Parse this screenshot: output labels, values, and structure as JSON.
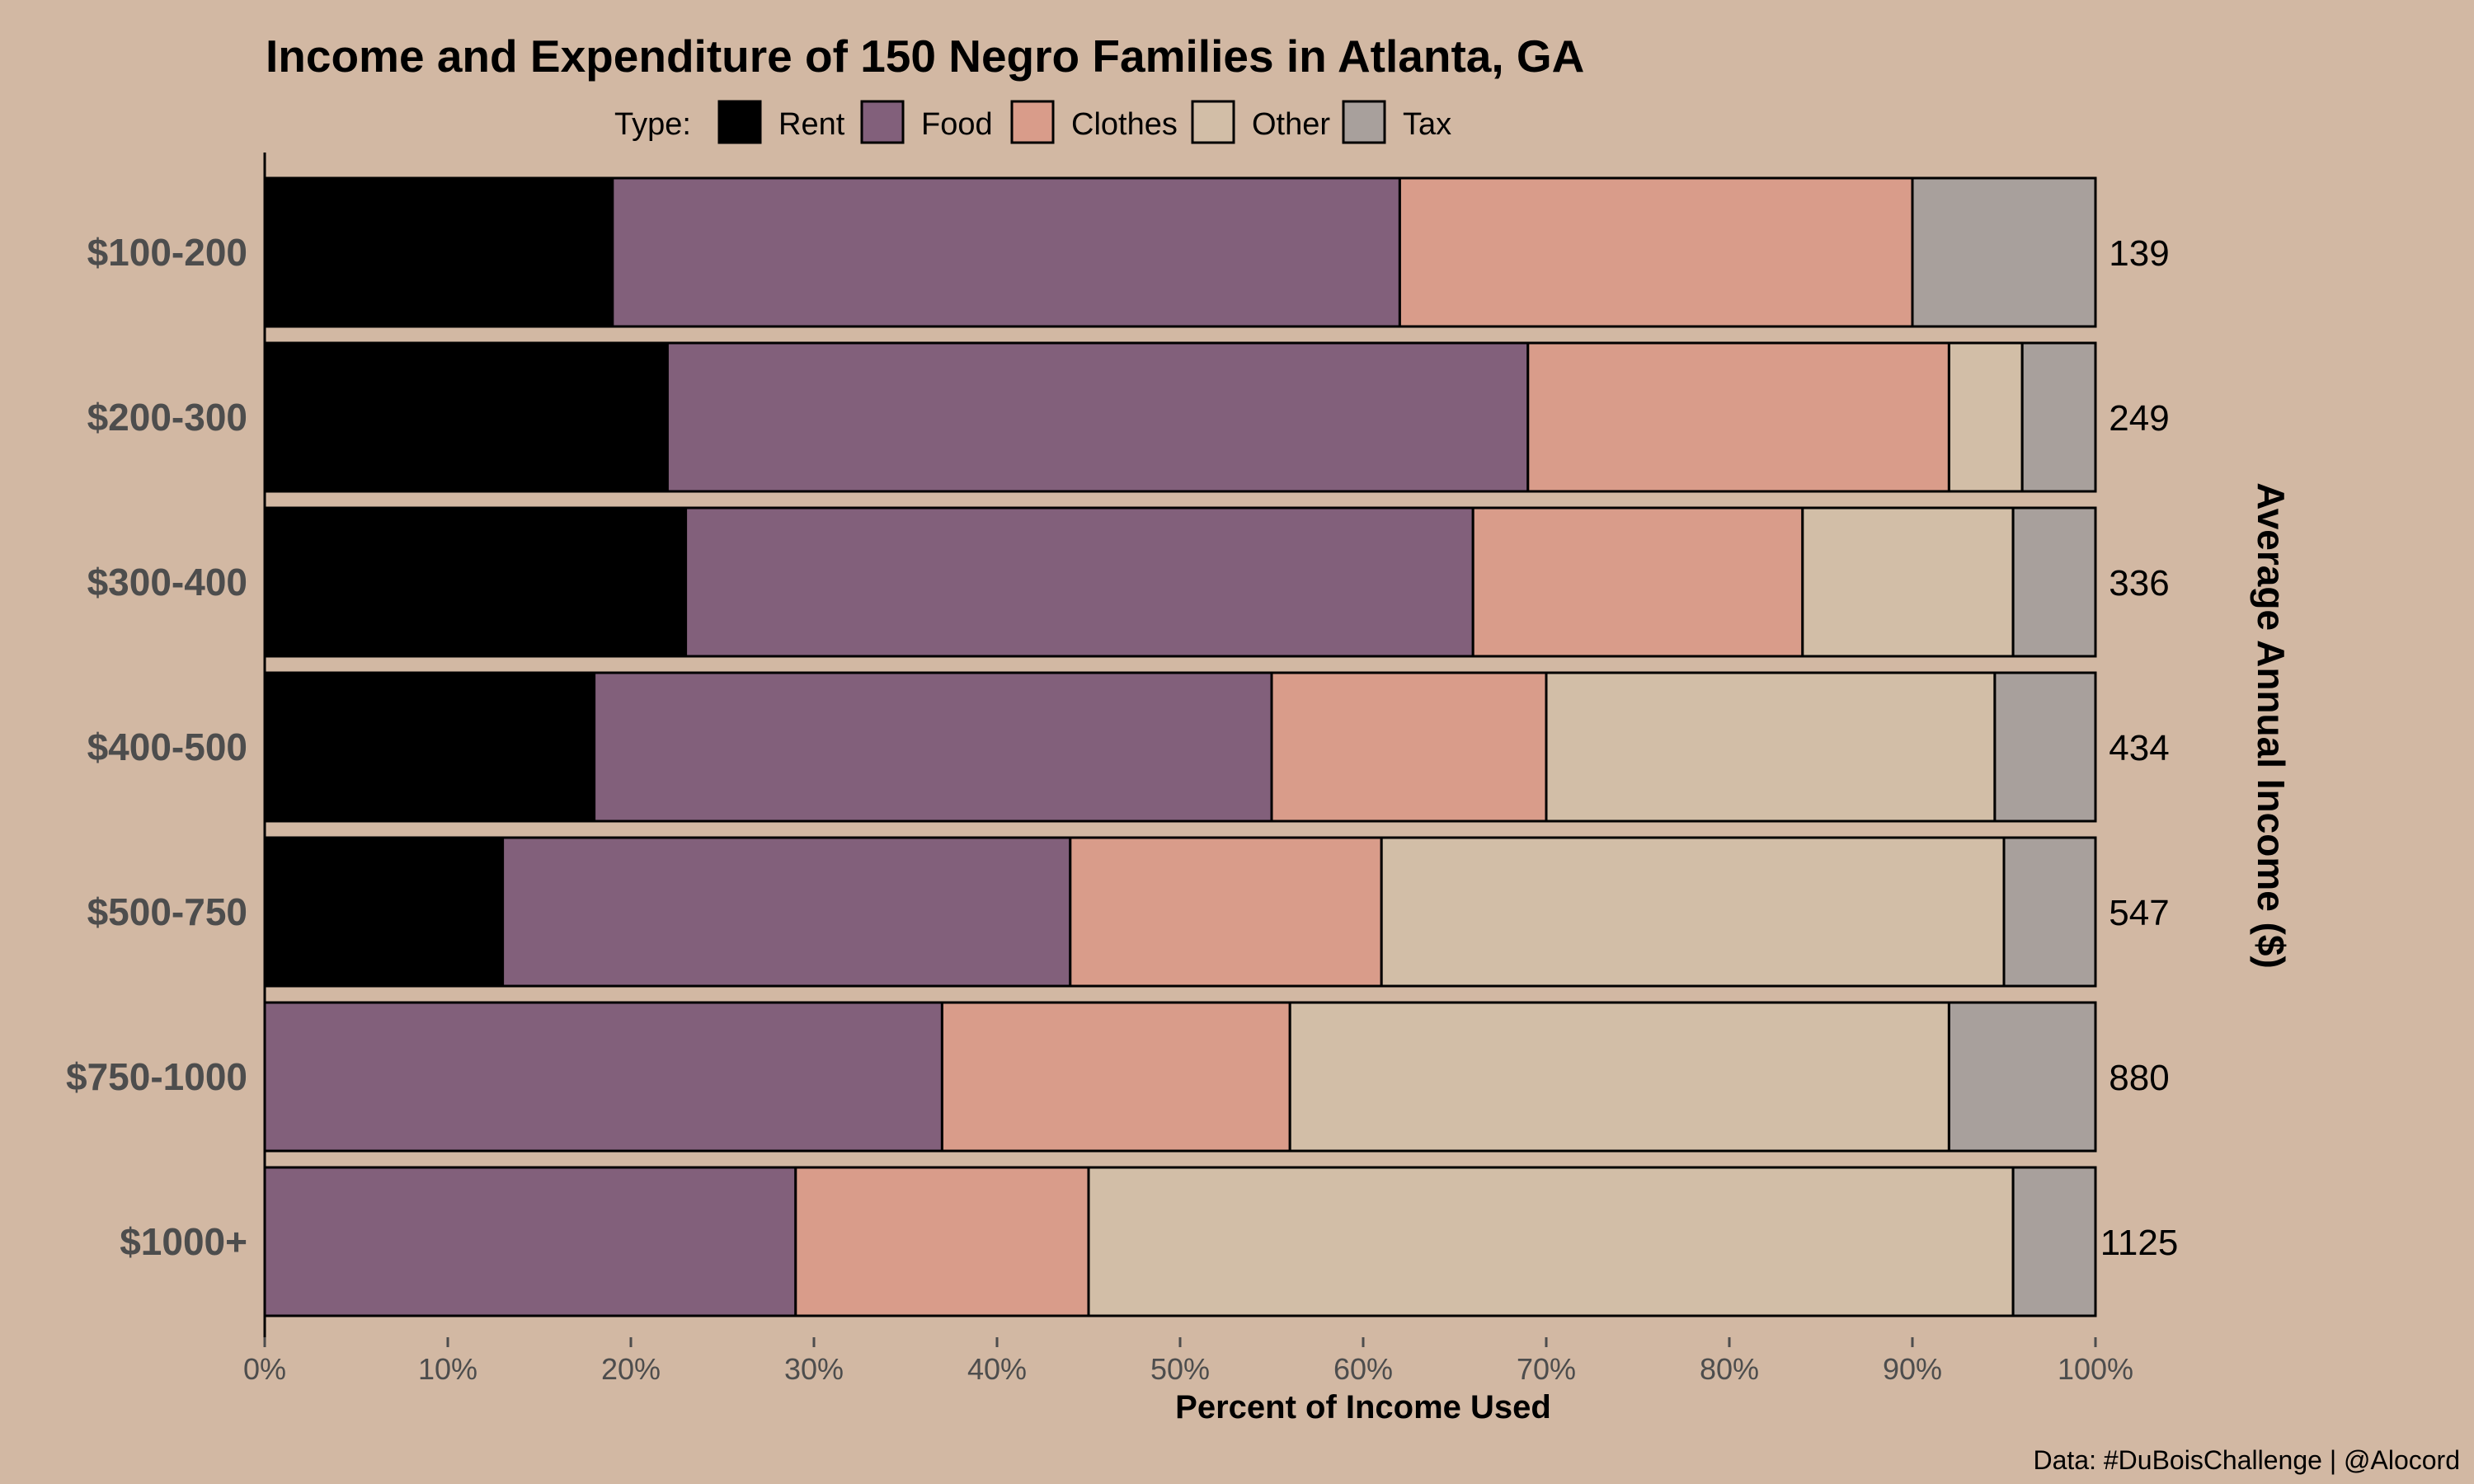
{
  "chart_data": {
    "type": "bar",
    "orientation": "horizontal",
    "stacked": true,
    "title": "Income and Expenditure of 150 Negro Families in Atlanta, GA",
    "legend_title": "Type:",
    "legend_position": "top",
    "xlabel": "Percent of Income Used",
    "ylabel_right": "Average Annual Income ($)",
    "caption": "Data: #DuBoisChallenge | @Alocord",
    "xlim": [
      0,
      100
    ],
    "x_ticks": [
      "0%",
      "10%",
      "20%",
      "30%",
      "40%",
      "50%",
      "60%",
      "70%",
      "80%",
      "90%",
      "100%"
    ],
    "grid": false,
    "categories": [
      "$100-200",
      "$200-300",
      "$300-400",
      "$400-500",
      "$500-750",
      "$750-1000",
      "$1000+"
    ],
    "average_income": [
      "139",
      "249",
      "336",
      "434",
      "547",
      "880",
      "1125"
    ],
    "series": [
      {
        "name": "Rent",
        "color": "#000000",
        "values": [
          19,
          22,
          23,
          18,
          13,
          0,
          0
        ]
      },
      {
        "name": "Food",
        "color": "#82607b",
        "values": [
          43,
          47,
          43,
          37,
          31,
          37,
          29
        ]
      },
      {
        "name": "Clothes",
        "color": "#d99c8a",
        "values": [
          28,
          23,
          18,
          15,
          17,
          19,
          16
        ]
      },
      {
        "name": "Other",
        "color": "#d2bea7",
        "values": [
          0,
          4,
          11.5,
          24.5,
          34,
          36,
          50.5
        ]
      },
      {
        "name": "Tax",
        "color": "#a8a09c",
        "values": [
          10,
          4,
          4.5,
          5.5,
          5,
          8,
          4.5
        ]
      }
    ]
  }
}
